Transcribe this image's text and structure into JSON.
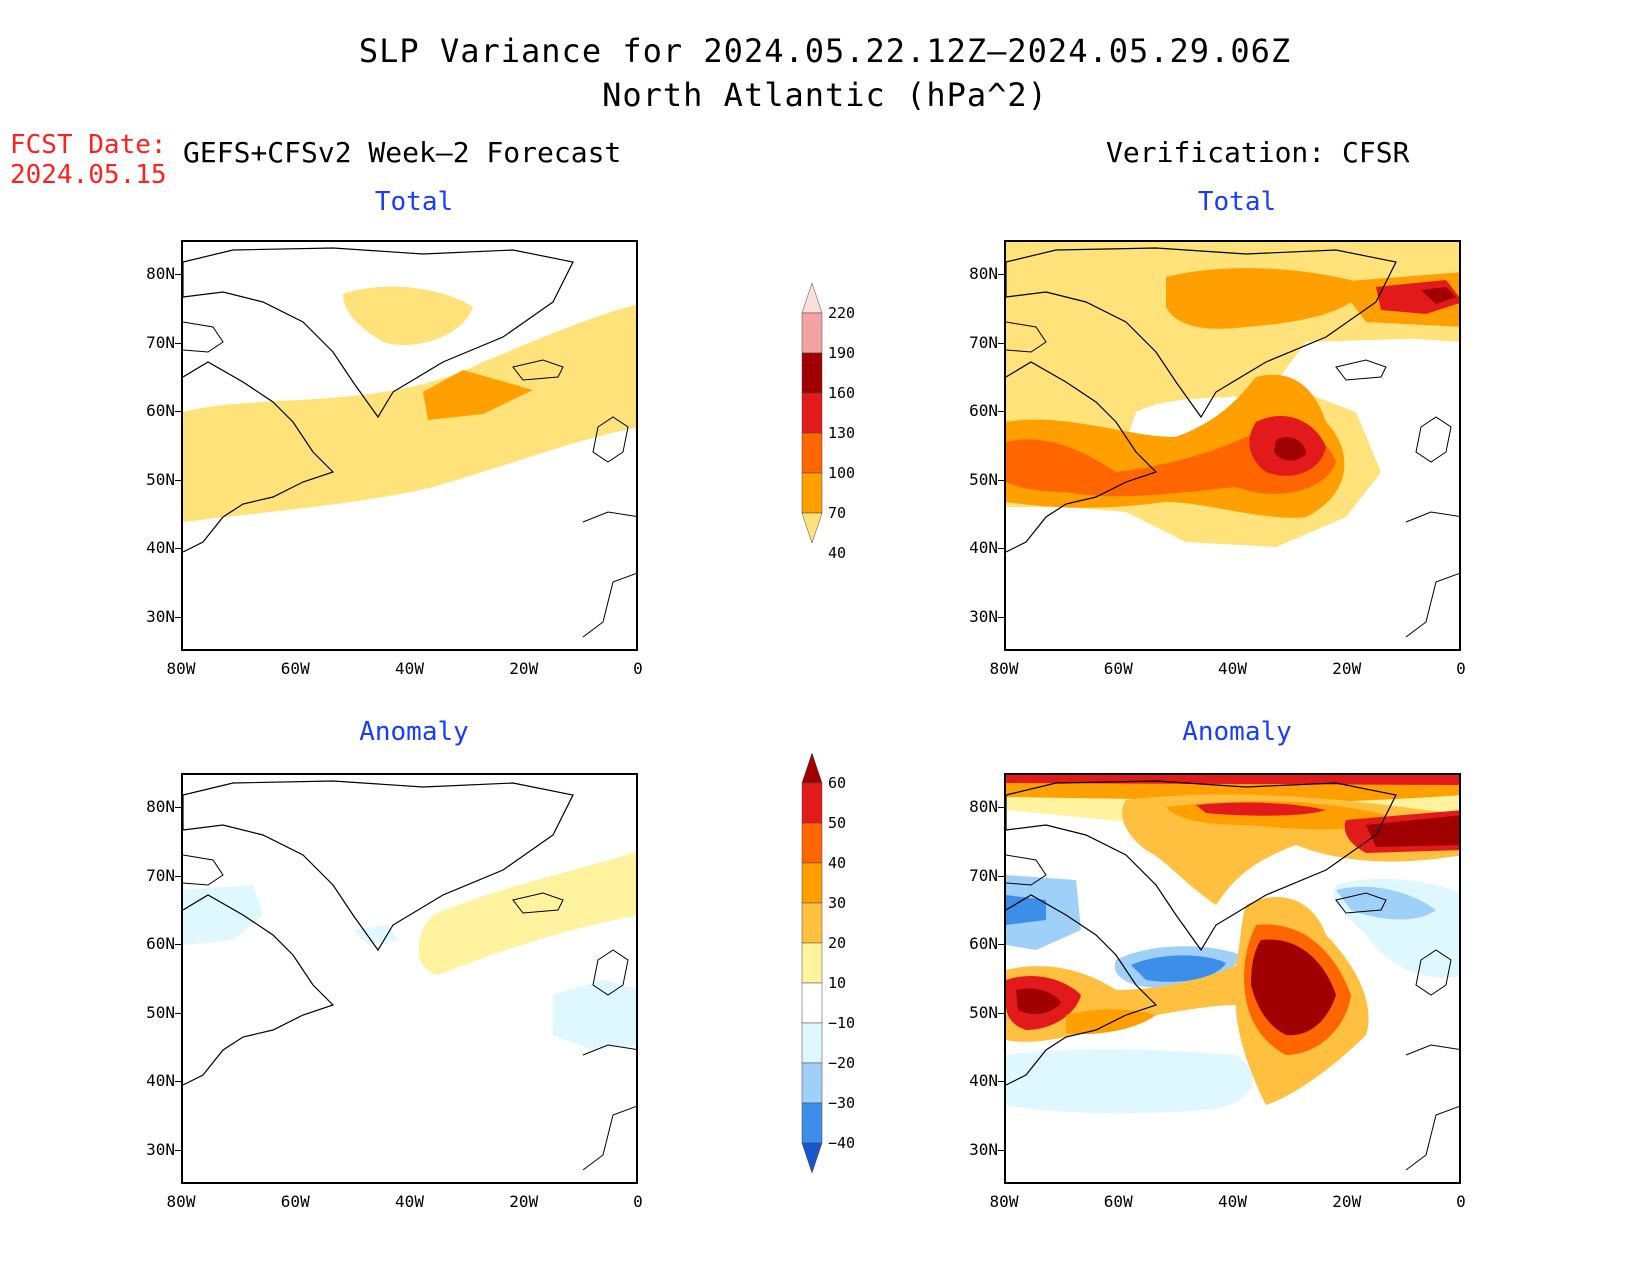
{
  "figure": {
    "title_line1": "SLP Variance for 2024.05.22.12Z–2024.05.29.06Z",
    "title_line2": "North Atlantic (hPa^2)",
    "fcst_label": "FCST Date:",
    "fcst_date": "2024.05.15",
    "left_header": "GEFS+CFSv2 Week–2 Forecast",
    "right_header": "Verification: CFSR"
  },
  "panels": [
    {
      "title": "Total"
    },
    {
      "title": "Total"
    },
    {
      "title": "Anomaly"
    },
    {
      "title": "Anomaly"
    }
  ],
  "axes": {
    "lat_ticks": [
      "80N",
      "70N",
      "60N",
      "50N",
      "40N",
      "30N"
    ],
    "lon_ticks": [
      "80W",
      "60W",
      "40W",
      "20W",
      "0"
    ],
    "lat_range": [
      25,
      85
    ],
    "lon_range": [
      -80,
      0
    ]
  },
  "colorbar_total": {
    "labels": [
      "220",
      "190",
      "160",
      "130",
      "100",
      "70",
      "40"
    ],
    "colors": [
      "#fde0dc",
      "#f4a3a3",
      "#a00000",
      "#e31a1c",
      "#ff6600",
      "#ffa000",
      "#ffe37a"
    ]
  },
  "colorbar_anom": {
    "labels": [
      "60",
      "50",
      "40",
      "30",
      "20",
      "10",
      "−10",
      "−20",
      "−30",
      "−40"
    ],
    "colors": [
      "#a00000",
      "#e31a1c",
      "#ff6600",
      "#ffa000",
      "#ffc040",
      "#fff3a0",
      "#ffffff",
      "#dff7ff",
      "#9fd0f8",
      "#3d8ee8",
      "#1a55d0"
    ]
  },
  "chart_data": [
    {
      "type": "heatmap",
      "panel": "forecast-total",
      "levels": [
        40,
        70,
        100,
        130,
        160,
        190,
        220
      ]
    },
    {
      "type": "heatmap",
      "panel": "verification-total",
      "levels": [
        40,
        70,
        100,
        130,
        160,
        190,
        220
      ]
    },
    {
      "type": "heatmap",
      "panel": "forecast-anomaly",
      "levels": [
        -40,
        -30,
        -20,
        -10,
        10,
        20,
        30,
        40,
        50,
        60
      ]
    },
    {
      "type": "heatmap",
      "panel": "verification-anomaly",
      "levels": [
        -40,
        -30,
        -20,
        -10,
        10,
        20,
        30,
        40,
        50,
        60
      ]
    }
  ]
}
